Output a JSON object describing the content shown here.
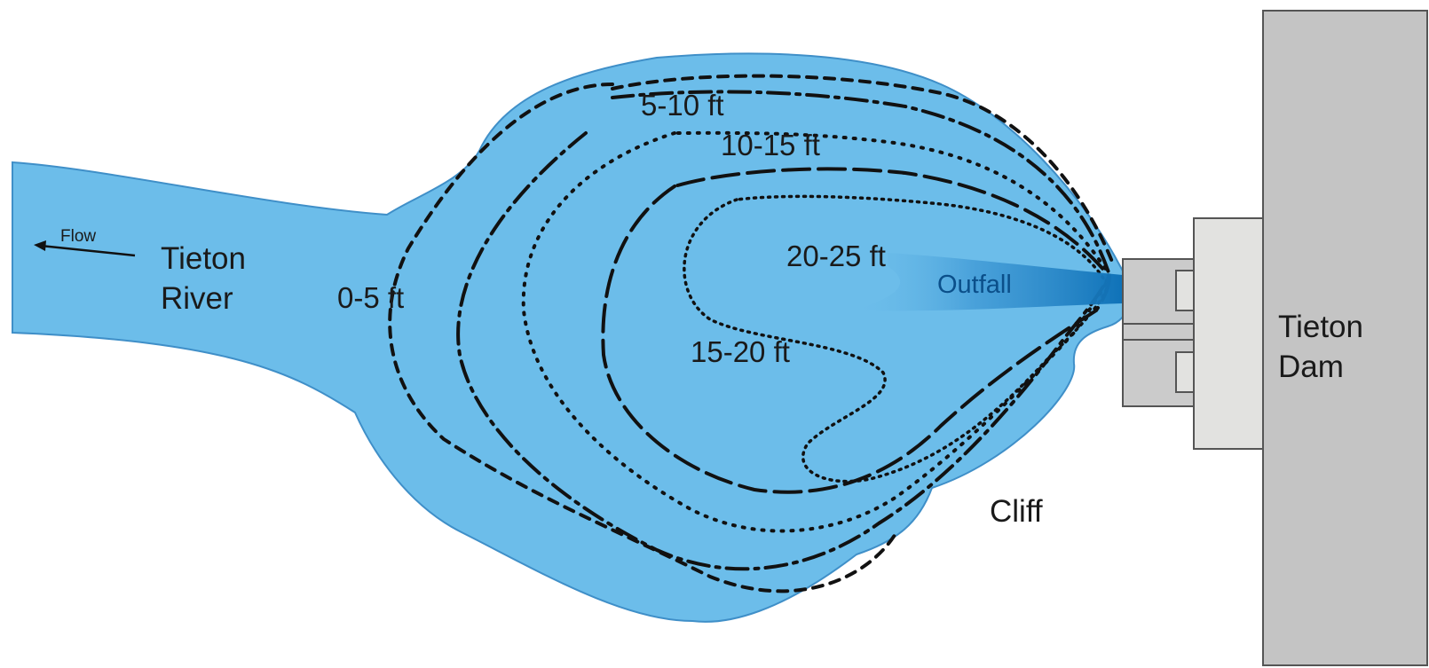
{
  "labels": {
    "flow": "Flow",
    "river_line1": "Tieton",
    "river_line2": "River",
    "dam_line1": "Tieton",
    "dam_line2": "Dam",
    "cliff": "Cliff",
    "outfall": "Outfall"
  },
  "depth_contours": [
    {
      "label": "0-5 ft",
      "line_style": "dashed"
    },
    {
      "label": "5-10 ft",
      "line_style": "dash-dot"
    },
    {
      "label": "10-15 ft",
      "line_style": "dotted"
    },
    {
      "label": "15-20 ft",
      "line_style": "long-dash"
    },
    {
      "label": "20-25 ft",
      "line_style": "fine-dotted"
    }
  ],
  "colors": {
    "water": "#6cbdea",
    "water_edge": "#3f8fc8",
    "outfall_jet": "#1b7fc4",
    "dam": "#c4c4c4",
    "dam_edge": "#555555",
    "structure_light": "#e2e2e0",
    "structure_mid": "#cbcbcb"
  }
}
